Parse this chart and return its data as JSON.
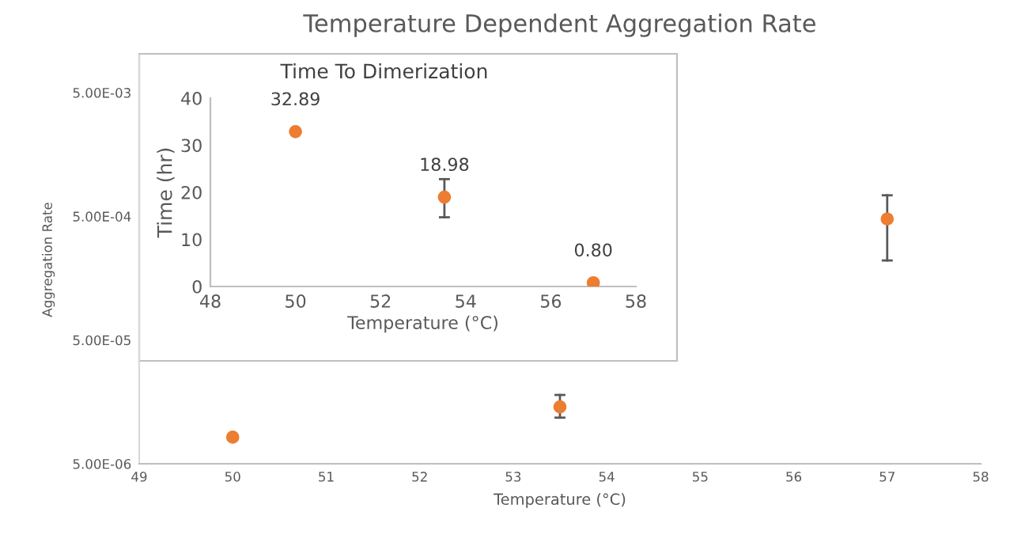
{
  "chart_data": [
    {
      "type": "scatter",
      "title": "Temperature Dependent Aggregation Rate",
      "xlabel": "Temperature (°C)",
      "ylabel": "Aggregation Rate",
      "x": [
        50,
        53.5,
        57
      ],
      "log": "y",
      "series": [
        {
          "color": "#ed7d31",
          "values": [
            8.2e-06,
            1.44e-05,
            0.000476
          ],
          "errors": [
            null,
            [
              1.18e-05,
              1.8e-05
            ],
            [
              0.00022,
              0.00074
            ]
          ]
        }
      ],
      "xlim": [
        49,
        58
      ],
      "xticks": [
        49,
        50,
        51,
        52,
        53,
        54,
        55,
        56,
        57,
        58
      ],
      "ylim": [
        5e-06,
        0.01
      ],
      "yticks": [
        {
          "value": 5e-06,
          "label": "5.00E-06"
        },
        {
          "value": 5e-05,
          "label": "5.00E-05"
        },
        {
          "value": 0.0005,
          "label": "5.00E-04"
        },
        {
          "value": 0.005,
          "label": "5.00E-03"
        }
      ],
      "marker": "circle",
      "grid": false,
      "legend": false
    },
    {
      "type": "scatter",
      "title": "Time To Dimerization",
      "xlabel": "Temperature (°C)",
      "ylabel": "Time (hr)",
      "x": [
        50,
        53.5,
        57
      ],
      "series": [
        {
          "color": "#ed7d31",
          "values": [
            32.89,
            18.98,
            0.8
          ],
          "value_labels": [
            "32.89",
            "18.98",
            "0.80"
          ],
          "errors": [
            null,
            [
              14.7,
              22.8
            ],
            null
          ]
        }
      ],
      "xlim": [
        48,
        58
      ],
      "xticks": [
        48,
        50,
        52,
        54,
        56,
        58
      ],
      "ylim": [
        0,
        40
      ],
      "yticks": [
        0,
        10,
        20,
        30,
        40
      ],
      "marker": "circle",
      "grid": false,
      "legend": false
    }
  ]
}
